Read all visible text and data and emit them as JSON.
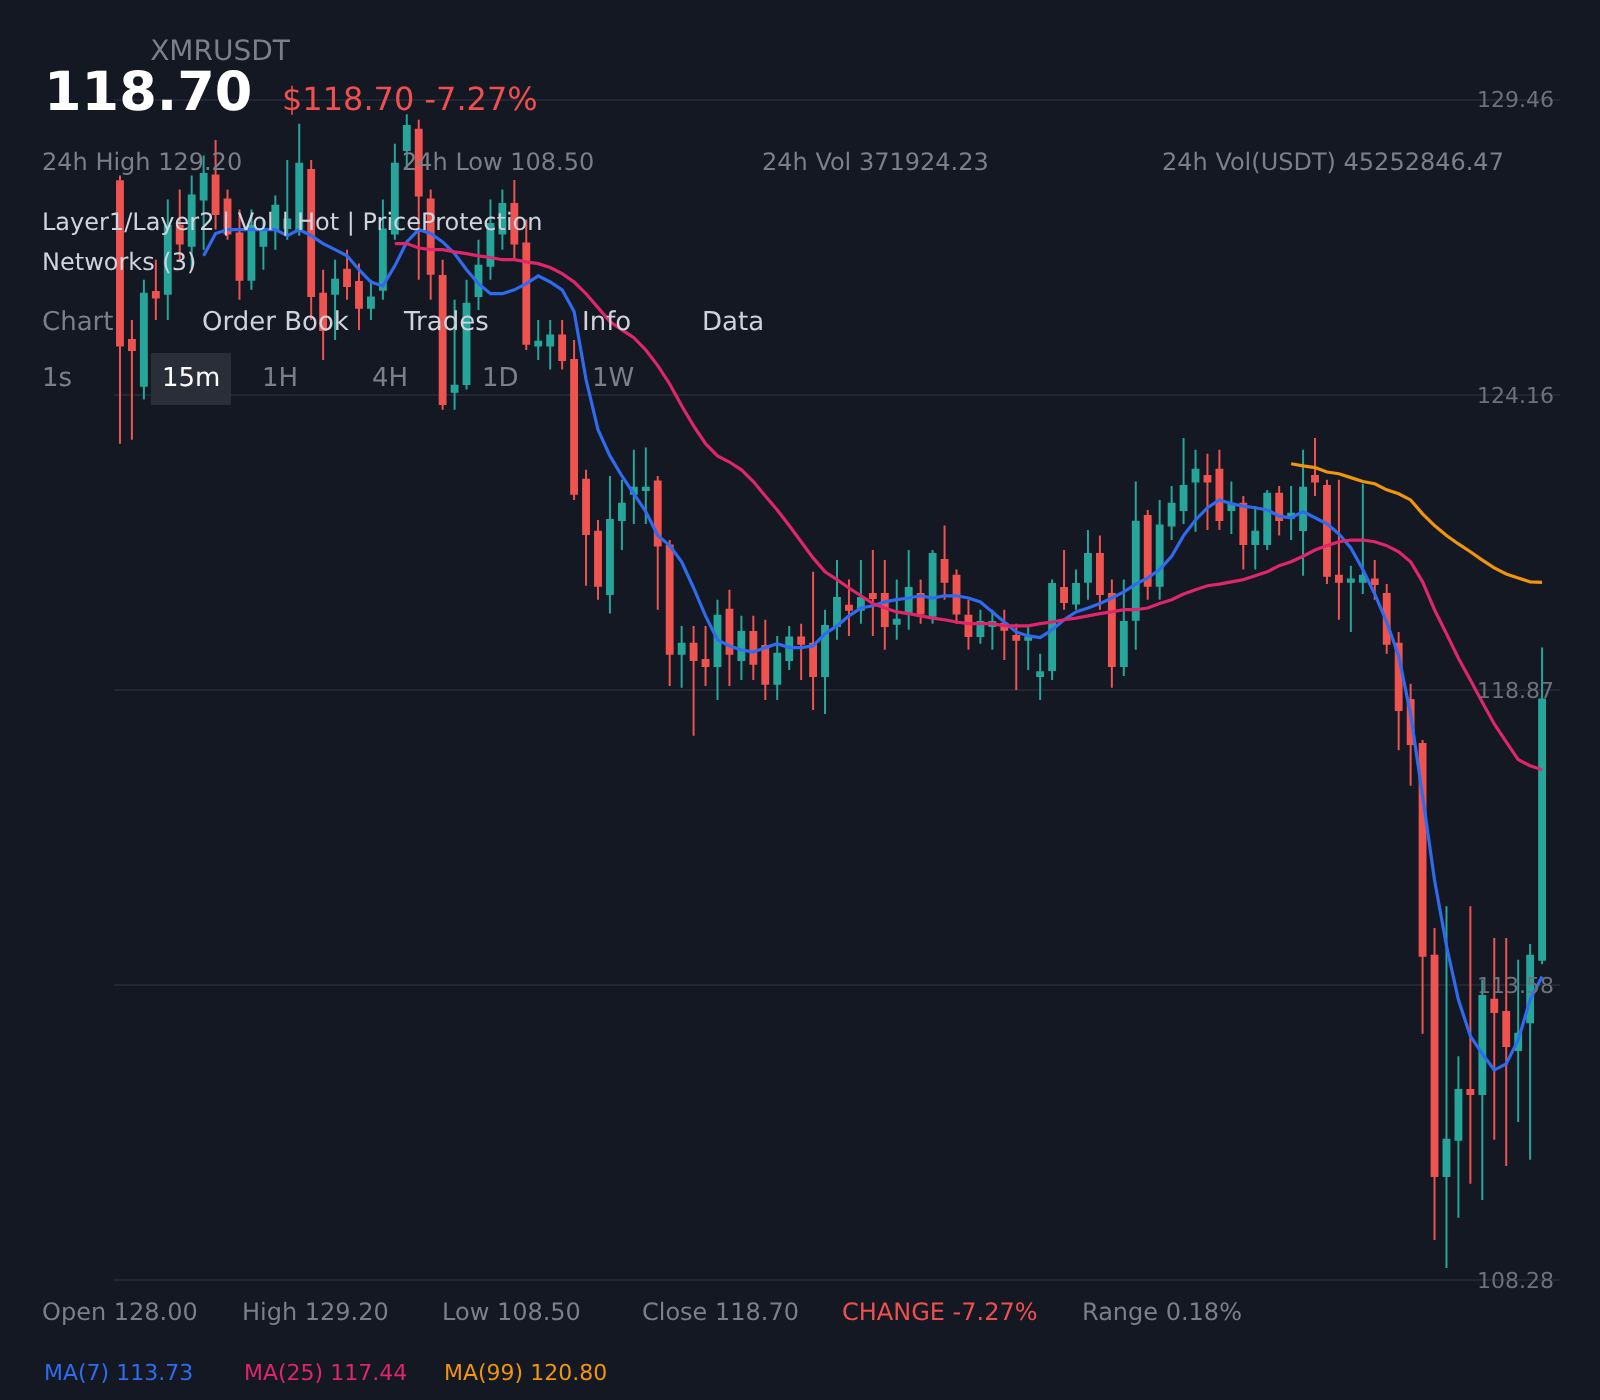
{
  "chart_data": {
    "type": "candlestick",
    "title": "XMRUSDT",
    "subtitle": "118.70",
    "annotations": [
      "$118.70 -7.27%",
      "24h High 129.20",
      "24h Low 108.50",
      "24h Vol 371924.23",
      "24h Vol(USDT) 45252846.47",
      "Layer1/Layer2 | Vol | Hot | PriceProtection",
      "Networks (3)",
      "Chart",
      "Order Book",
      "Trades",
      "Info",
      "Data",
      "1s",
      "15m",
      "1H",
      "4H",
      "1D",
      "1W",
      "Open 128.00",
      "High 129.20",
      "Low 108.50",
      "Close 118.70",
      "CHANGE -7.27%",
      "Range 0.18%"
    ],
    "categories": [
      null,
      null,
      null,
      null,
      null,
      null,
      null,
      null,
      null,
      null,
      null,
      null,
      null,
      null,
      null,
      null,
      null,
      null,
      null,
      null,
      null,
      null,
      null,
      null,
      null,
      null,
      null,
      null,
      null,
      null,
      null,
      null,
      null,
      null,
      null,
      null,
      null,
      null,
      null,
      null,
      null,
      null,
      null,
      null,
      null,
      null,
      null,
      null,
      null,
      null,
      null,
      null,
      null,
      null,
      null,
      null,
      null,
      null,
      null,
      null,
      null,
      null,
      null,
      null,
      null,
      null,
      null,
      null,
      null,
      null,
      null,
      null,
      null,
      null,
      null,
      null,
      null,
      null,
      null,
      null,
      null,
      null,
      null,
      null,
      null,
      null,
      null,
      null,
      null,
      null,
      null,
      null,
      null,
      null,
      null,
      null,
      null,
      null,
      null,
      null,
      null,
      null,
      null,
      null,
      null,
      null,
      null,
      null,
      null,
      null,
      null,
      null,
      null,
      null,
      null,
      null,
      null,
      null,
      null,
      null
    ],
    "ohlc": [
      [
        128.0,
        128.1,
        123.29,
        125.05
      ],
      [
        125.15,
        125.51,
        123.36,
        124.97
      ],
      [
        124.33,
        126.23,
        124.08,
        125.98
      ],
      [
        126.01,
        126.59,
        125.51,
        125.91
      ],
      [
        125.98,
        127.67,
        125.51,
        127.2
      ],
      [
        127.2,
        127.85,
        126.59,
        126.88
      ],
      [
        126.84,
        128.1,
        126.41,
        127.74
      ],
      [
        127.67,
        128.46,
        126.77,
        128.13
      ],
      [
        128.1,
        128.74,
        127.13,
        127.41
      ],
      [
        127.67,
        127.85,
        126.95,
        127.06
      ],
      [
        127.06,
        127.49,
        125.87,
        126.23
      ],
      [
        126.23,
        127.49,
        126.05,
        127.2
      ],
      [
        126.84,
        127.31,
        126.41,
        127.13
      ],
      [
        127.13,
        127.74,
        126.77,
        127.56
      ],
      [
        127.16,
        128.38,
        126.95,
        127.31
      ],
      [
        127.13,
        129.03,
        127.02,
        128.31
      ],
      [
        128.2,
        128.38,
        125.51,
        125.94
      ],
      [
        125.98,
        126.41,
        124.79,
        125.33
      ],
      [
        125.98,
        126.59,
        125.15,
        126.23
      ],
      [
        126.41,
        126.77,
        125.87,
        126.12
      ],
      [
        126.19,
        126.52,
        125.33,
        125.73
      ],
      [
        125.73,
        126.23,
        125.51,
        125.91
      ],
      [
        126.05,
        127.67,
        125.87,
        127.13
      ],
      [
        127.06,
        128.67,
        126.95,
        128.31
      ],
      [
        128.56,
        129.2,
        128.2,
        128.99
      ],
      [
        128.92,
        129.1,
        126.23,
        127.74
      ],
      [
        127.67,
        127.85,
        125.87,
        126.34
      ],
      [
        126.3,
        126.59,
        123.9,
        124.0
      ],
      [
        124.22,
        125.87,
        123.9,
        124.33
      ],
      [
        124.36,
        126.23,
        124.26,
        125.8
      ],
      [
        125.94,
        126.95,
        125.69,
        126.48
      ],
      [
        126.48,
        127.67,
        126.23,
        127.23
      ],
      [
        127.06,
        127.85,
        126.77,
        127.59
      ],
      [
        127.59,
        128.02,
        126.59,
        126.88
      ],
      [
        126.88,
        127.31,
        124.97,
        125.08
      ],
      [
        125.05,
        125.51,
        124.79,
        125.12
      ],
      [
        125.05,
        125.51,
        124.62,
        125.23
      ],
      [
        125.23,
        125.51,
        124.62,
        124.79
      ],
      [
        124.79,
        125.15,
        122.28,
        122.39
      ],
      [
        122.64,
        122.82,
        120.74,
        121.67
      ],
      [
        121.71,
        121.92,
        120.49,
        120.74
      ],
      [
        120.59,
        122.71,
        120.24,
        121.92
      ],
      [
        121.92,
        122.64,
        121.38,
        122.21
      ],
      [
        122.39,
        123.18,
        121.85,
        122.5
      ],
      [
        122.46,
        123.22,
        121.85,
        122.5
      ],
      [
        122.61,
        122.71,
        120.31,
        121.46
      ],
      [
        121.46,
        121.56,
        118.94,
        119.52
      ],
      [
        119.52,
        120.02,
        118.91,
        119.7
      ],
      [
        119.7,
        120.02,
        118.05,
        119.41
      ],
      [
        119.41,
        120.02,
        118.94,
        119.3
      ],
      [
        119.3,
        120.49,
        118.69,
        120.2
      ],
      [
        120.31,
        120.67,
        118.94,
        119.52
      ],
      [
        119.41,
        120.2,
        119.05,
        119.91
      ],
      [
        119.91,
        120.2,
        119.05,
        119.34
      ],
      [
        119.66,
        120.13,
        118.69,
        118.98
      ],
      [
        118.98,
        119.84,
        118.69,
        119.52
      ],
      [
        119.41,
        120.02,
        119.23,
        119.81
      ],
      [
        119.81,
        120.06,
        119.05,
        119.7
      ],
      [
        119.7,
        120.99,
        118.51,
        119.12
      ],
      [
        119.12,
        120.31,
        118.44,
        120.02
      ],
      [
        120.02,
        121.2,
        119.77,
        120.52
      ],
      [
        120.38,
        120.85,
        119.84,
        120.31
      ],
      [
        120.31,
        121.2,
        120.06,
        120.52
      ],
      [
        120.59,
        121.38,
        119.84,
        120.52
      ],
      [
        120.59,
        121.2,
        119.59,
        120.02
      ],
      [
        120.06,
        120.85,
        119.77,
        120.13
      ],
      [
        120.24,
        121.38,
        119.95,
        120.7
      ],
      [
        120.59,
        120.85,
        120.06,
        120.24
      ],
      [
        120.2,
        121.38,
        120.06,
        121.31
      ],
      [
        121.2,
        121.82,
        120.49,
        120.81
      ],
      [
        120.92,
        121.03,
        120.06,
        120.24
      ],
      [
        120.2,
        120.49,
        119.59,
        119.84
      ],
      [
        119.84,
        120.31,
        119.7,
        120.09
      ],
      [
        120.02,
        120.31,
        119.59,
        120.09
      ],
      [
        120.06,
        120.31,
        119.41,
        119.95
      ],
      [
        119.84,
        120.06,
        118.87,
        119.77
      ],
      [
        119.77,
        120.02,
        119.23,
        119.81
      ],
      [
        119.12,
        119.52,
        118.69,
        119.19
      ],
      [
        119.23,
        120.85,
        119.05,
        120.77
      ],
      [
        120.7,
        121.38,
        120.31,
        120.45
      ],
      [
        120.42,
        121.03,
        120.31,
        120.77
      ],
      [
        120.81,
        121.74,
        120.49,
        121.31
      ],
      [
        121.31,
        121.64,
        120.31,
        120.59
      ],
      [
        120.59,
        120.85,
        118.91,
        119.3
      ],
      [
        119.3,
        120.85,
        119.12,
        120.09
      ],
      [
        120.13,
        122.61,
        119.59,
        121.89
      ],
      [
        121.99,
        122.1,
        120.49,
        120.74
      ],
      [
        120.74,
        122.28,
        120.49,
        121.82
      ],
      [
        121.82,
        122.53,
        121.56,
        122.21
      ],
      [
        122.1,
        123.39,
        121.85,
        122.53
      ],
      [
        122.61,
        123.18,
        121.71,
        122.82
      ],
      [
        122.71,
        123.11,
        121.74,
        122.61
      ],
      [
        122.82,
        123.18,
        121.74,
        121.92
      ],
      [
        122.1,
        122.61,
        121.67,
        122.21
      ],
      [
        122.21,
        122.35,
        121.03,
        121.49
      ],
      [
        121.49,
        122.17,
        121.03,
        121.71
      ],
      [
        121.49,
        122.46,
        121.38,
        122.39
      ],
      [
        122.39,
        122.53,
        121.64,
        121.92
      ],
      [
        121.96,
        122.53,
        121.56,
        122.03
      ],
      [
        121.74,
        123.18,
        120.92,
        122.5
      ],
      [
        122.71,
        123.39,
        122.35,
        122.61
      ],
      [
        122.53,
        122.64,
        120.77,
        120.92
      ],
      [
        120.92,
        122.64,
        120.13,
        120.81
      ],
      [
        120.81,
        121.1,
        119.91,
        120.85
      ],
      [
        120.81,
        122.57,
        120.59,
        120.92
      ],
      [
        120.85,
        121.2,
        120.49,
        120.77
      ],
      [
        120.59,
        120.77,
        119.52,
        119.7
      ],
      [
        119.7,
        119.91,
        117.79,
        118.51
      ],
      [
        118.69,
        118.98,
        117.15,
        117.9
      ],
      [
        117.9,
        117.97,
        112.7,
        114.1
      ],
      [
        114.1,
        114.6,
        109.0,
        110.15
      ],
      [
        110.15,
        114.99,
        108.5,
        110.8
      ],
      [
        110.8,
        112.3,
        109.4,
        111.69
      ],
      [
        111.69,
        114.99,
        110.01,
        111.62
      ],
      [
        111.62,
        113.67,
        109.72,
        113.38
      ],
      [
        113.31,
        114.42,
        110.8,
        113.09
      ],
      [
        113.09,
        114.42,
        110.33,
        112.48
      ],
      [
        112.41,
        114.03,
        111.12,
        112.7
      ],
      [
        112.91,
        114.31,
        110.44,
        114.1
      ],
      [
        114.03,
        119.63,
        113.95,
        118.7
      ]
    ],
    "series": [
      {
        "type": "line",
        "name": "MA(7) 113.73",
        "color": "#2f6bef",
        "values": [
          null,
          null,
          null,
          null,
          null,
          null,
          null,
          126.66,
          127.06,
          127.13,
          127.13,
          127.13,
          127.13,
          127.13,
          127.02,
          127.13,
          127.02,
          126.88,
          126.77,
          126.66,
          126.41,
          126.19,
          126.12,
          126.48,
          126.91,
          127.13,
          127.06,
          126.91,
          126.7,
          126.41,
          126.16,
          125.98,
          125.98,
          126.05,
          126.16,
          126.3,
          126.19,
          126.05,
          125.66,
          124.44,
          123.54,
          123.07,
          122.71,
          122.39,
          122.07,
          121.64,
          121.46,
          121.17,
          120.7,
          120.2,
          119.77,
          119.66,
          119.59,
          119.55,
          119.63,
          119.7,
          119.63,
          119.63,
          119.66,
          119.88,
          120.02,
          120.2,
          120.34,
          120.38,
          120.45,
          120.49,
          120.52,
          120.56,
          120.52,
          120.56,
          120.56,
          120.52,
          120.45,
          120.27,
          120.09,
          119.91,
          119.84,
          119.81,
          119.95,
          120.13,
          120.27,
          120.34,
          120.42,
          120.52,
          120.63,
          120.77,
          120.88,
          121.03,
          121.27,
          121.64,
          121.92,
          122.14,
          122.28,
          122.21,
          122.17,
          122.14,
          122.1,
          121.99,
          121.96,
          122.07,
          121.96,
          121.85,
          121.67,
          121.42,
          121.03,
          120.59,
          120.09,
          119.48,
          118.44,
          116.97,
          115.46,
          114.28,
          113.31,
          112.66,
          112.34,
          112.05,
          112.16,
          112.59,
          113.31,
          113.73
        ]
      },
      {
        "type": "line",
        "name": "MA(25) 117.44",
        "color": "#e0266a",
        "values": [
          null,
          null,
          null,
          null,
          null,
          null,
          null,
          null,
          null,
          null,
          null,
          null,
          null,
          null,
          null,
          null,
          null,
          null,
          null,
          null,
          null,
          null,
          null,
          126.88,
          126.88,
          126.8,
          126.77,
          126.77,
          126.73,
          126.7,
          126.66,
          126.63,
          126.59,
          126.59,
          126.55,
          126.52,
          126.45,
          126.34,
          126.19,
          125.98,
          125.73,
          125.48,
          125.33,
          125.19,
          124.97,
          124.69,
          124.36,
          123.97,
          123.61,
          123.29,
          123.07,
          122.96,
          122.82,
          122.61,
          122.35,
          122.1,
          121.82,
          121.53,
          121.24,
          120.99,
          120.85,
          120.7,
          120.56,
          120.42,
          120.34,
          120.27,
          120.24,
          120.2,
          120.16,
          120.13,
          120.09,
          120.06,
          120.06,
          120.06,
          120.02,
          120.02,
          120.02,
          120.06,
          120.09,
          120.13,
          120.16,
          120.2,
          120.24,
          120.27,
          120.31,
          120.31,
          120.34,
          120.42,
          120.49,
          120.59,
          120.67,
          120.74,
          120.77,
          120.81,
          120.85,
          120.92,
          120.99,
          121.1,
          121.17,
          121.27,
          121.38,
          121.46,
          121.53,
          121.56,
          121.56,
          121.53,
          121.46,
          121.35,
          121.17,
          120.81,
          120.31,
          119.88,
          119.44,
          119.05,
          118.65,
          118.26,
          117.94,
          117.62,
          117.51,
          117.44
        ]
      },
      {
        "type": "line",
        "name": "MA(99) 120.80",
        "color": "#f0950c",
        "values": [
          null,
          null,
          null,
          null,
          null,
          null,
          null,
          null,
          null,
          null,
          null,
          null,
          null,
          null,
          null,
          null,
          null,
          null,
          null,
          null,
          null,
          null,
          null,
          null,
          null,
          null,
          null,
          null,
          null,
          null,
          null,
          null,
          null,
          null,
          null,
          null,
          null,
          null,
          null,
          null,
          null,
          null,
          null,
          null,
          null,
          null,
          null,
          null,
          null,
          null,
          null,
          null,
          null,
          null,
          null,
          null,
          null,
          null,
          null,
          null,
          null,
          null,
          null,
          null,
          null,
          null,
          null,
          null,
          null,
          null,
          null,
          null,
          null,
          null,
          null,
          null,
          null,
          null,
          null,
          null,
          null,
          null,
          null,
          null,
          null,
          null,
          null,
          null,
          null,
          null,
          null,
          null,
          null,
          null,
          null,
          null,
          null,
          null,
          122.93,
          122.89,
          122.86,
          122.78,
          122.75,
          122.68,
          122.61,
          122.57,
          122.46,
          122.39,
          122.28,
          122.03,
          121.82,
          121.64,
          121.49,
          121.35,
          121.2,
          121.06,
          120.95,
          120.88,
          120.81,
          120.8
        ]
      }
    ],
    "ylim": [
      106.13,
      131.25
    ],
    "yticks": [
      129.46,
      124.16,
      118.87,
      113.58,
      108.28
    ],
    "grid": "y",
    "tick_labels": "y"
  }
}
